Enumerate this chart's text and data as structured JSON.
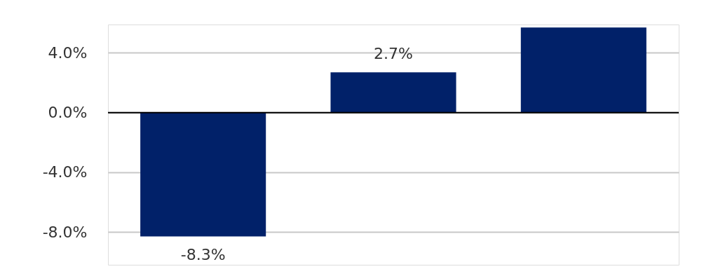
{
  "chart_data": {
    "type": "bar",
    "categories": [
      null,
      null,
      null
    ],
    "values": [
      -8.3,
      2.7,
      5.7
    ],
    "value_labels": [
      "-8.3%",
      "2.7%",
      null
    ],
    "color": "#012169",
    "ylim": [
      -10.2,
      5.9
    ],
    "yticks": [
      {
        "value": -8,
        "label": "-8.0%"
      },
      {
        "value": -4,
        "label": "-4.0%"
      },
      {
        "value": 0,
        "label": "0.0%"
      },
      {
        "value": 4,
        "label": "4.0%"
      }
    ],
    "grid": "y"
  }
}
